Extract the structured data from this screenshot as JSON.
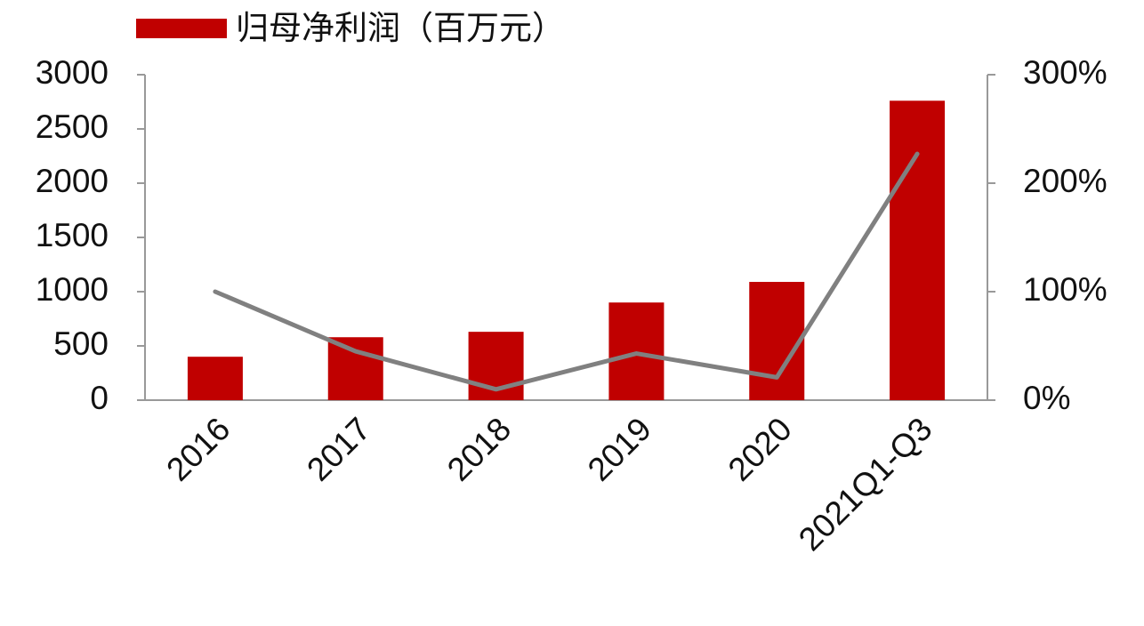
{
  "chart_data": {
    "type": "bar",
    "categories": [
      "2016",
      "2017",
      "2018",
      "2019",
      "2020",
      "2021Q1-Q3"
    ],
    "series": [
      {
        "name": "归母净利润（百万元）",
        "type": "bar",
        "color": "#c00000",
        "values": [
          400,
          580,
          630,
          900,
          1090,
          2760
        ]
      },
      {
        "type": "line",
        "axis": "y2",
        "color": "#808080",
        "values": [
          100,
          45,
          10,
          43,
          21,
          227
        ]
      }
    ],
    "ylim": [
      0,
      3000
    ],
    "yticks": [
      0,
      500,
      1000,
      1500,
      2000,
      2500,
      3000
    ],
    "y2lim": [
      0,
      300
    ],
    "y2ticks": [
      {
        "value": 0,
        "label": "0%"
      },
      {
        "value": 100,
        "label": "100%"
      },
      {
        "value": 200,
        "label": "200%"
      },
      {
        "value": 300,
        "label": "300%"
      }
    ],
    "legend": "top-left"
  }
}
